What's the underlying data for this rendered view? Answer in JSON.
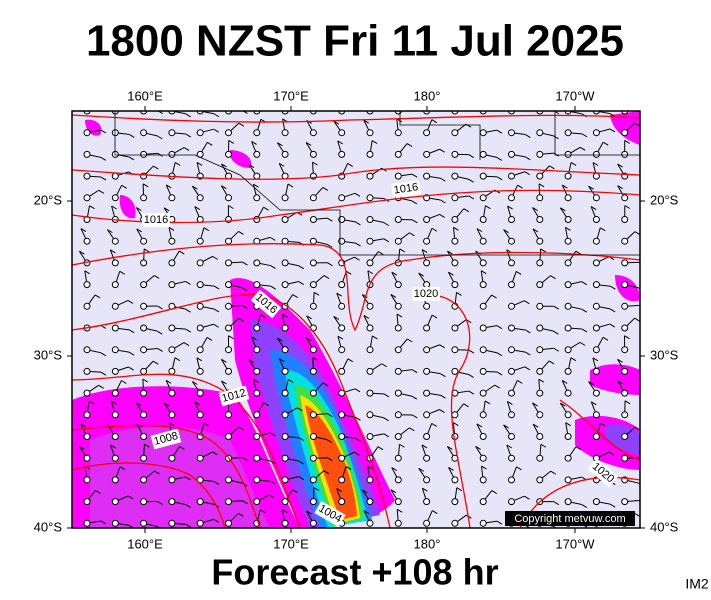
{
  "header": {
    "title": "1800 NZST Fri 11 Jul 2025"
  },
  "map": {
    "lon_labels": [
      "160°E",
      "170°E",
      "180°",
      "170°W"
    ],
    "lat_labels": [
      "20°S",
      "30°S",
      "40°S"
    ],
    "isobar_labels": [
      "1016",
      "1016",
      "1016",
      "1020",
      "1012",
      "1008",
      "1004",
      "1020"
    ],
    "copyright": "Copyright metvuw.com"
  },
  "footer": {
    "forecast": "Forecast +108 hr",
    "image_id": "IM2"
  }
}
